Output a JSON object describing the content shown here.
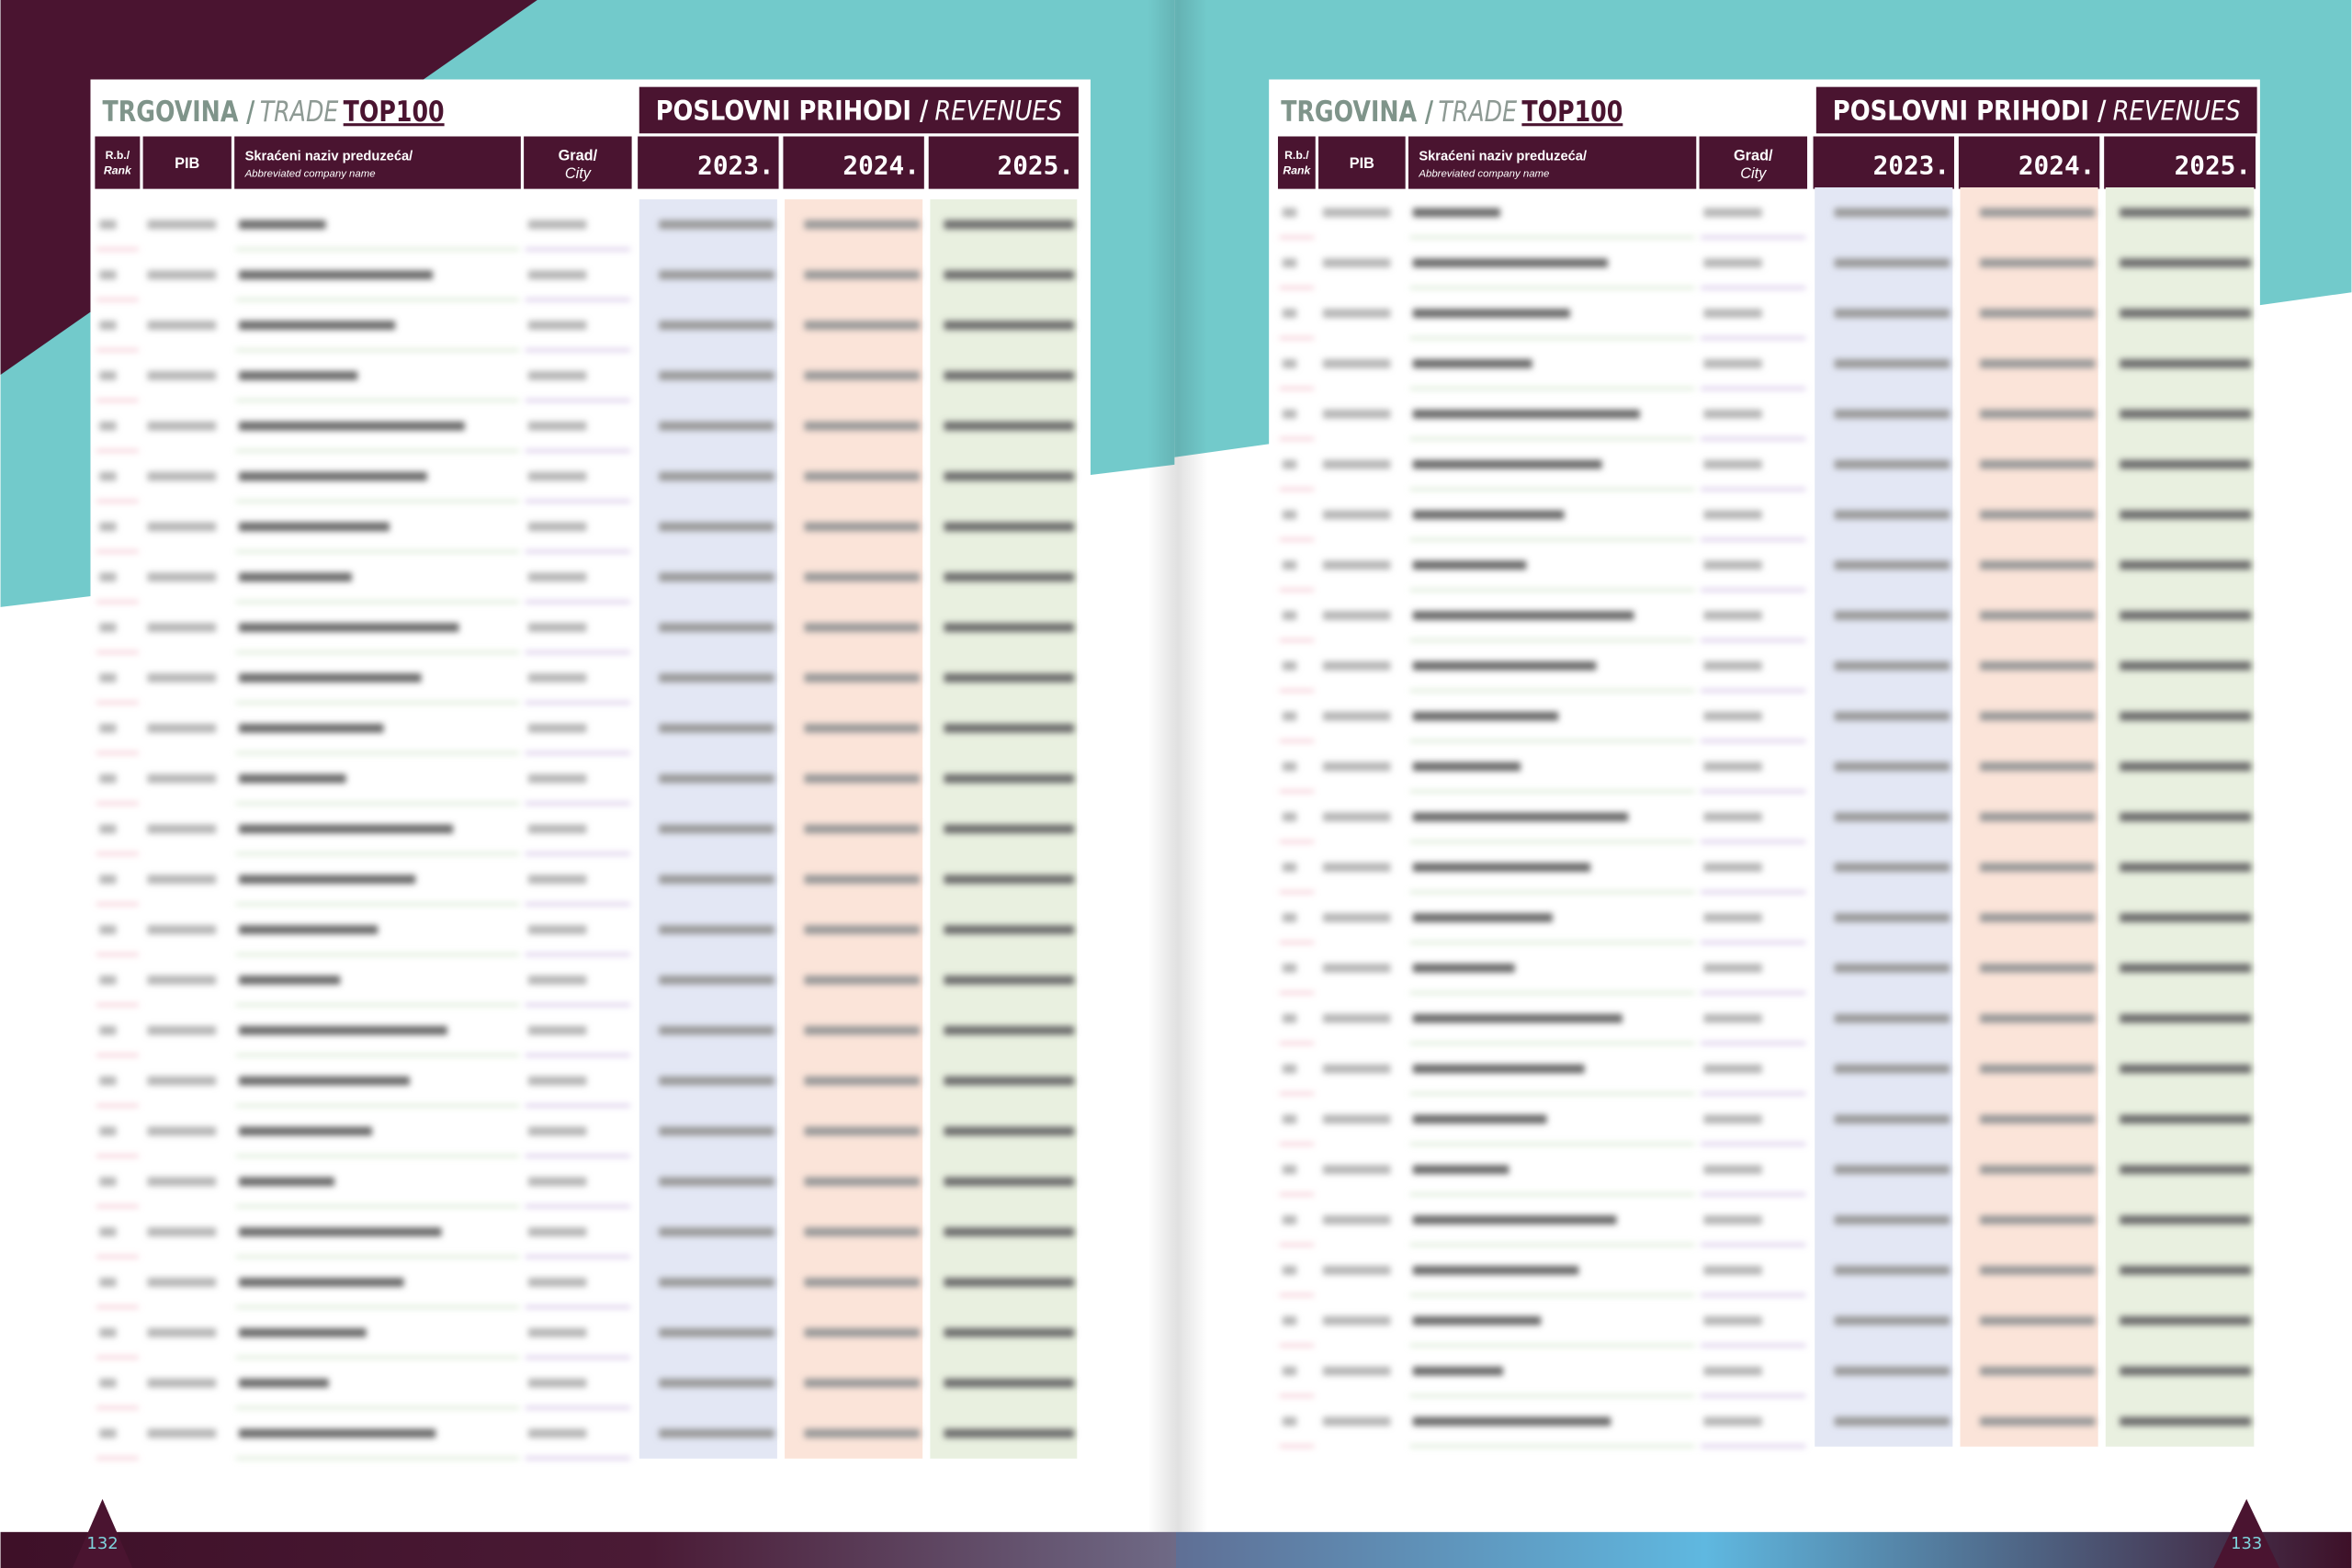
{
  "pages": [
    {
      "header": {
        "section": "TRGOVINA /",
        "section_en": "TRADE",
        "brand": "TOP100",
        "metric": "POSLOVNI PRIHODI /",
        "metric_en": "REVENUES"
      },
      "columns": {
        "rank": "R.b./",
        "rank_en": "Rank",
        "pib": "PIB",
        "name": "Skraćeni naziv preduzeća/",
        "name_en": "Abbreviated company name",
        "city": "Grad/",
        "city_en": "City",
        "years": [
          "2023.",
          "2024.",
          "2025."
        ]
      },
      "page_number": "132"
    },
    {
      "header": {
        "section": "TRGOVINA /",
        "section_en": "TRADE",
        "brand": "TOP100",
        "metric": "POSLOVNI PRIHODI /",
        "metric_en": "REVENUES"
      },
      "columns": {
        "rank": "R.b./",
        "rank_en": "Rank",
        "pib": "PIB",
        "name": "Skraćeni naziv preduzeća/",
        "name_en": "Abbreviated company name",
        "city": "Grad/",
        "city_en": "City",
        "years": [
          "2023.",
          "2024.",
          "2025."
        ]
      },
      "page_number": "133"
    }
  ]
}
